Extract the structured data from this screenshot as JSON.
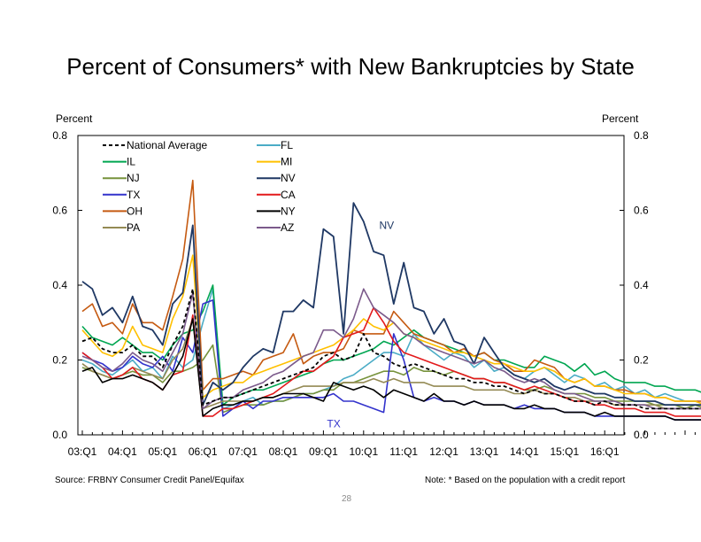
{
  "chart_data": {
    "type": "line",
    "title": "Percent of Consumers* with New Bankruptcies by State",
    "ylabel_left": "Percent",
    "ylabel_right": "Percent",
    "ylim": [
      0,
      0.8
    ],
    "yticks": [
      "0.0",
      "0.2",
      "0.4",
      "0.6",
      "0.8"
    ],
    "x_tick_labels": [
      "03:Q1",
      "04:Q1",
      "05:Q1",
      "06:Q1",
      "07:Q1",
      "08:Q1",
      "09:Q1",
      "10:Q1",
      "11:Q1",
      "12:Q1",
      "13:Q1",
      "14:Q1",
      "15:Q1",
      "16:Q1"
    ],
    "x_start": "2003Q1",
    "series": [
      {
        "name": "FL",
        "color": "#4bacc6",
        "dash": false,
        "values": [
          0.2,
          0.19,
          0.17,
          0.16,
          0.18,
          0.2,
          0.17,
          0.18,
          0.15,
          0.21,
          0.18,
          0.2,
          0.3,
          0.39,
          0.07,
          0.08,
          0.09,
          0.1,
          0.08,
          0.09,
          0.09,
          0.1,
          0.11,
          0.11,
          0.12,
          0.13,
          0.15,
          0.16,
          0.18,
          0.2,
          0.22,
          0.22,
          0.21,
          0.27,
          0.24,
          0.22,
          0.2,
          0.22,
          0.21,
          0.18,
          0.2,
          0.17,
          0.18,
          0.16,
          0.15,
          0.17,
          0.18,
          0.16,
          0.14,
          0.16,
          0.15,
          0.13,
          0.14,
          0.12,
          0.13,
          0.11,
          0.12,
          0.1,
          0.11,
          0.1,
          0.09,
          0.09,
          0.08,
          0.09
        ]
      },
      {
        "name": "IL",
        "color": "#00a651",
        "dash": false,
        "values": [
          0.29,
          0.26,
          0.25,
          0.24,
          0.26,
          0.24,
          0.22,
          0.22,
          0.2,
          0.24,
          0.27,
          0.28,
          0.33,
          0.4,
          0.08,
          0.1,
          0.11,
          0.12,
          0.12,
          0.13,
          0.14,
          0.15,
          0.16,
          0.17,
          0.19,
          0.2,
          0.2,
          0.21,
          0.22,
          0.23,
          0.25,
          0.24,
          0.26,
          0.28,
          0.26,
          0.25,
          0.24,
          0.23,
          0.22,
          0.21,
          0.22,
          0.2,
          0.2,
          0.19,
          0.18,
          0.18,
          0.21,
          0.2,
          0.19,
          0.17,
          0.19,
          0.16,
          0.17,
          0.15,
          0.14,
          0.14,
          0.14,
          0.13,
          0.13,
          0.12,
          0.12,
          0.12,
          0.11,
          0.11
        ]
      },
      {
        "name": "NJ",
        "color": "#77933c",
        "dash": false,
        "values": [
          0.18,
          0.17,
          0.16,
          0.15,
          0.16,
          0.17,
          0.16,
          0.16,
          0.14,
          0.17,
          0.17,
          0.18,
          0.2,
          0.24,
          0.06,
          0.07,
          0.08,
          0.08,
          0.08,
          0.09,
          0.09,
          0.1,
          0.11,
          0.11,
          0.12,
          0.12,
          0.14,
          0.14,
          0.15,
          0.16,
          0.17,
          0.17,
          0.16,
          0.18,
          0.17,
          0.17,
          0.16,
          0.17,
          0.16,
          0.15,
          0.15,
          0.14,
          0.14,
          0.13,
          0.12,
          0.12,
          0.13,
          0.12,
          0.11,
          0.11,
          0.11,
          0.1,
          0.1,
          0.09,
          0.09,
          0.09,
          0.09,
          0.08,
          0.08,
          0.08,
          0.07,
          0.08,
          0.07,
          0.07
        ]
      },
      {
        "name": "TX",
        "color": "#3333cc",
        "dash": false,
        "values": [
          0.22,
          0.2,
          0.19,
          0.17,
          0.18,
          0.21,
          0.19,
          0.18,
          0.21,
          0.17,
          0.26,
          0.22,
          0.35,
          0.36,
          0.05,
          0.07,
          0.09,
          0.07,
          0.09,
          0.09,
          0.1,
          0.1,
          0.1,
          0.1,
          0.1,
          0.11,
          0.09,
          0.09,
          0.08,
          0.07,
          0.06,
          0.27,
          0.2,
          0.1,
          0.09,
          0.1,
          0.09,
          0.09,
          0.08,
          0.09,
          0.08,
          0.08,
          0.08,
          0.07,
          0.08,
          0.07,
          0.07,
          0.07,
          0.06,
          0.06,
          0.06,
          0.05,
          0.05,
          0.05,
          0.05,
          0.05,
          0.05,
          0.05,
          0.05,
          0.04,
          0.04,
          0.04,
          0.04,
          0.04
        ]
      },
      {
        "name": "OH",
        "color": "#c55a11",
        "dash": false,
        "values": [
          0.33,
          0.35,
          0.29,
          0.3,
          0.27,
          0.35,
          0.3,
          0.3,
          0.28,
          0.37,
          0.47,
          0.68,
          0.12,
          0.15,
          0.15,
          0.16,
          0.17,
          0.16,
          0.2,
          0.21,
          0.22,
          0.27,
          0.19,
          0.21,
          0.22,
          0.22,
          0.23,
          0.28,
          0.27,
          0.27,
          0.27,
          0.33,
          0.3,
          0.27,
          0.26,
          0.25,
          0.24,
          0.22,
          0.23,
          0.21,
          0.22,
          0.2,
          0.19,
          0.17,
          0.17,
          0.2,
          0.19,
          0.18,
          0.15,
          0.14,
          0.15,
          0.13,
          0.13,
          0.12,
          0.12,
          0.11,
          0.11,
          0.1,
          0.1,
          0.09,
          0.09,
          0.09,
          0.09,
          0.09
        ]
      },
      {
        "name": "PA",
        "color": "#948a54",
        "dash": false,
        "values": [
          0.19,
          0.17,
          0.16,
          0.15,
          0.16,
          0.18,
          0.17,
          0.16,
          0.15,
          0.2,
          0.23,
          0.31,
          0.07,
          0.08,
          0.09,
          0.09,
          0.09,
          0.09,
          0.1,
          0.1,
          0.11,
          0.12,
          0.13,
          0.13,
          0.13,
          0.13,
          0.14,
          0.14,
          0.14,
          0.15,
          0.14,
          0.15,
          0.14,
          0.14,
          0.14,
          0.13,
          0.13,
          0.13,
          0.13,
          0.12,
          0.12,
          0.12,
          0.12,
          0.11,
          0.11,
          0.12,
          0.11,
          0.11,
          0.1,
          0.1,
          0.09,
          0.09,
          0.09,
          0.08,
          0.08,
          0.08,
          0.08,
          0.08,
          0.07,
          0.07,
          0.07,
          0.07,
          0.07,
          0.07
        ]
      },
      {
        "name": "MI",
        "color": "#ffc000",
        "dash": false,
        "values": [
          0.28,
          0.25,
          0.22,
          0.21,
          0.23,
          0.29,
          0.24,
          0.23,
          0.22,
          0.31,
          0.37,
          0.48,
          0.1,
          0.12,
          0.13,
          0.14,
          0.14,
          0.16,
          0.17,
          0.18,
          0.19,
          0.2,
          0.21,
          0.22,
          0.23,
          0.24,
          0.26,
          0.28,
          0.31,
          0.29,
          0.28,
          0.3,
          0.27,
          0.26,
          0.25,
          0.24,
          0.23,
          0.22,
          0.22,
          0.21,
          0.2,
          0.19,
          0.19,
          0.18,
          0.17,
          0.17,
          0.18,
          0.17,
          0.15,
          0.14,
          0.15,
          0.13,
          0.13,
          0.12,
          0.11,
          0.11,
          0.11,
          0.1,
          0.1,
          0.09,
          0.09,
          0.09,
          0.08,
          0.08
        ]
      },
      {
        "name": "NV",
        "color": "#1f3864",
        "dash": false,
        "values": [
          0.41,
          0.39,
          0.32,
          0.34,
          0.3,
          0.37,
          0.29,
          0.28,
          0.24,
          0.35,
          0.38,
          0.56,
          0.08,
          0.14,
          0.12,
          0.14,
          0.18,
          0.21,
          0.23,
          0.22,
          0.33,
          0.33,
          0.36,
          0.34,
          0.55,
          0.53,
          0.27,
          0.62,
          0.57,
          0.49,
          0.48,
          0.35,
          0.46,
          0.34,
          0.33,
          0.27,
          0.31,
          0.25,
          0.24,
          0.19,
          0.26,
          0.22,
          0.18,
          0.16,
          0.15,
          0.14,
          0.15,
          0.13,
          0.12,
          0.13,
          0.12,
          0.11,
          0.11,
          0.1,
          0.1,
          0.09,
          0.09,
          0.09,
          0.08,
          0.08,
          0.08,
          0.08,
          0.08,
          0.08
        ]
      },
      {
        "name": "CA",
        "color": "#e31a1c",
        "dash": false,
        "values": [
          0.22,
          0.2,
          0.18,
          0.15,
          0.16,
          0.18,
          0.15,
          0.14,
          0.12,
          0.16,
          0.17,
          0.32,
          0.05,
          0.05,
          0.07,
          0.07,
          0.08,
          0.09,
          0.1,
          0.11,
          0.13,
          0.15,
          0.17,
          0.17,
          0.19,
          0.21,
          0.26,
          0.27,
          0.28,
          0.34,
          0.3,
          0.25,
          0.22,
          0.21,
          0.2,
          0.19,
          0.18,
          0.17,
          0.16,
          0.15,
          0.15,
          0.14,
          0.14,
          0.13,
          0.12,
          0.13,
          0.12,
          0.11,
          0.1,
          0.09,
          0.09,
          0.08,
          0.08,
          0.07,
          0.07,
          0.07,
          0.06,
          0.06,
          0.06,
          0.05,
          0.05,
          0.05,
          0.05,
          0.05
        ]
      },
      {
        "name": "NY",
        "color": "#000000",
        "dash": false,
        "values": [
          0.17,
          0.18,
          0.14,
          0.15,
          0.15,
          0.16,
          0.15,
          0.14,
          0.12,
          0.16,
          0.21,
          0.31,
          0.05,
          0.07,
          0.08,
          0.08,
          0.09,
          0.09,
          0.1,
          0.1,
          0.11,
          0.11,
          0.11,
          0.1,
          0.09,
          0.14,
          0.13,
          0.12,
          0.13,
          0.12,
          0.1,
          0.12,
          0.11,
          0.1,
          0.09,
          0.11,
          0.09,
          0.09,
          0.08,
          0.09,
          0.08,
          0.08,
          0.08,
          0.07,
          0.07,
          0.08,
          0.07,
          0.07,
          0.06,
          0.06,
          0.06,
          0.05,
          0.06,
          0.05,
          0.05,
          0.05,
          0.05,
          0.05,
          0.05,
          0.04,
          0.04,
          0.04,
          0.04,
          0.04
        ]
      },
      {
        "name": "AZ",
        "color": "#7b5a8b",
        "dash": false,
        "values": [
          0.21,
          0.2,
          0.18,
          0.17,
          0.19,
          0.22,
          0.2,
          0.19,
          0.17,
          0.22,
          0.27,
          0.38,
          0.07,
          0.09,
          0.1,
          0.1,
          0.12,
          0.13,
          0.14,
          0.16,
          0.17,
          0.19,
          0.21,
          0.22,
          0.28,
          0.28,
          0.26,
          0.31,
          0.39,
          0.34,
          0.32,
          0.3,
          0.27,
          0.26,
          0.24,
          0.23,
          0.22,
          0.21,
          0.2,
          0.19,
          0.2,
          0.18,
          0.17,
          0.15,
          0.14,
          0.15,
          0.14,
          0.12,
          0.11,
          0.11,
          0.1,
          0.09,
          0.09,
          0.09,
          0.08,
          0.08,
          0.08,
          0.07,
          0.07,
          0.07,
          0.07,
          0.07,
          0.07,
          0.07
        ]
      },
      {
        "name": "National Average",
        "color": "#000000",
        "dash": true,
        "values": [
          0.25,
          0.26,
          0.23,
          0.22,
          0.22,
          0.24,
          0.21,
          0.21,
          0.18,
          0.24,
          0.29,
          0.39,
          0.08,
          0.09,
          0.1,
          0.1,
          0.11,
          0.12,
          0.13,
          0.14,
          0.15,
          0.16,
          0.17,
          0.18,
          0.21,
          0.22,
          0.2,
          0.21,
          0.27,
          0.22,
          0.21,
          0.19,
          0.18,
          0.19,
          0.18,
          0.17,
          0.16,
          0.15,
          0.15,
          0.14,
          0.14,
          0.13,
          0.13,
          0.12,
          0.11,
          0.12,
          0.11,
          0.11,
          0.1,
          0.09,
          0.09,
          0.08,
          0.09,
          0.08,
          0.08,
          0.08,
          0.07,
          0.07,
          0.07,
          0.07,
          0.07,
          0.07,
          0.07,
          0.07
        ]
      }
    ],
    "legend": {
      "left": [
        "National Average",
        "IL",
        "NJ",
        "TX",
        "OH",
        "PA"
      ],
      "right": [
        "FL",
        "MI",
        "NV",
        "CA",
        "NY",
        "AZ"
      ]
    },
    "annotations": [
      {
        "text": "NV",
        "color": "#1f3864",
        "series": "NV",
        "index": 30
      },
      {
        "text": "TX",
        "color": "#3333cc",
        "series": "TX",
        "index": 24
      }
    ]
  },
  "footer": {
    "source": "Source: FRBNY Consumer Credit Panel/Equifax",
    "note": "Note: * Based on the population with a credit report",
    "page_number": "28"
  }
}
